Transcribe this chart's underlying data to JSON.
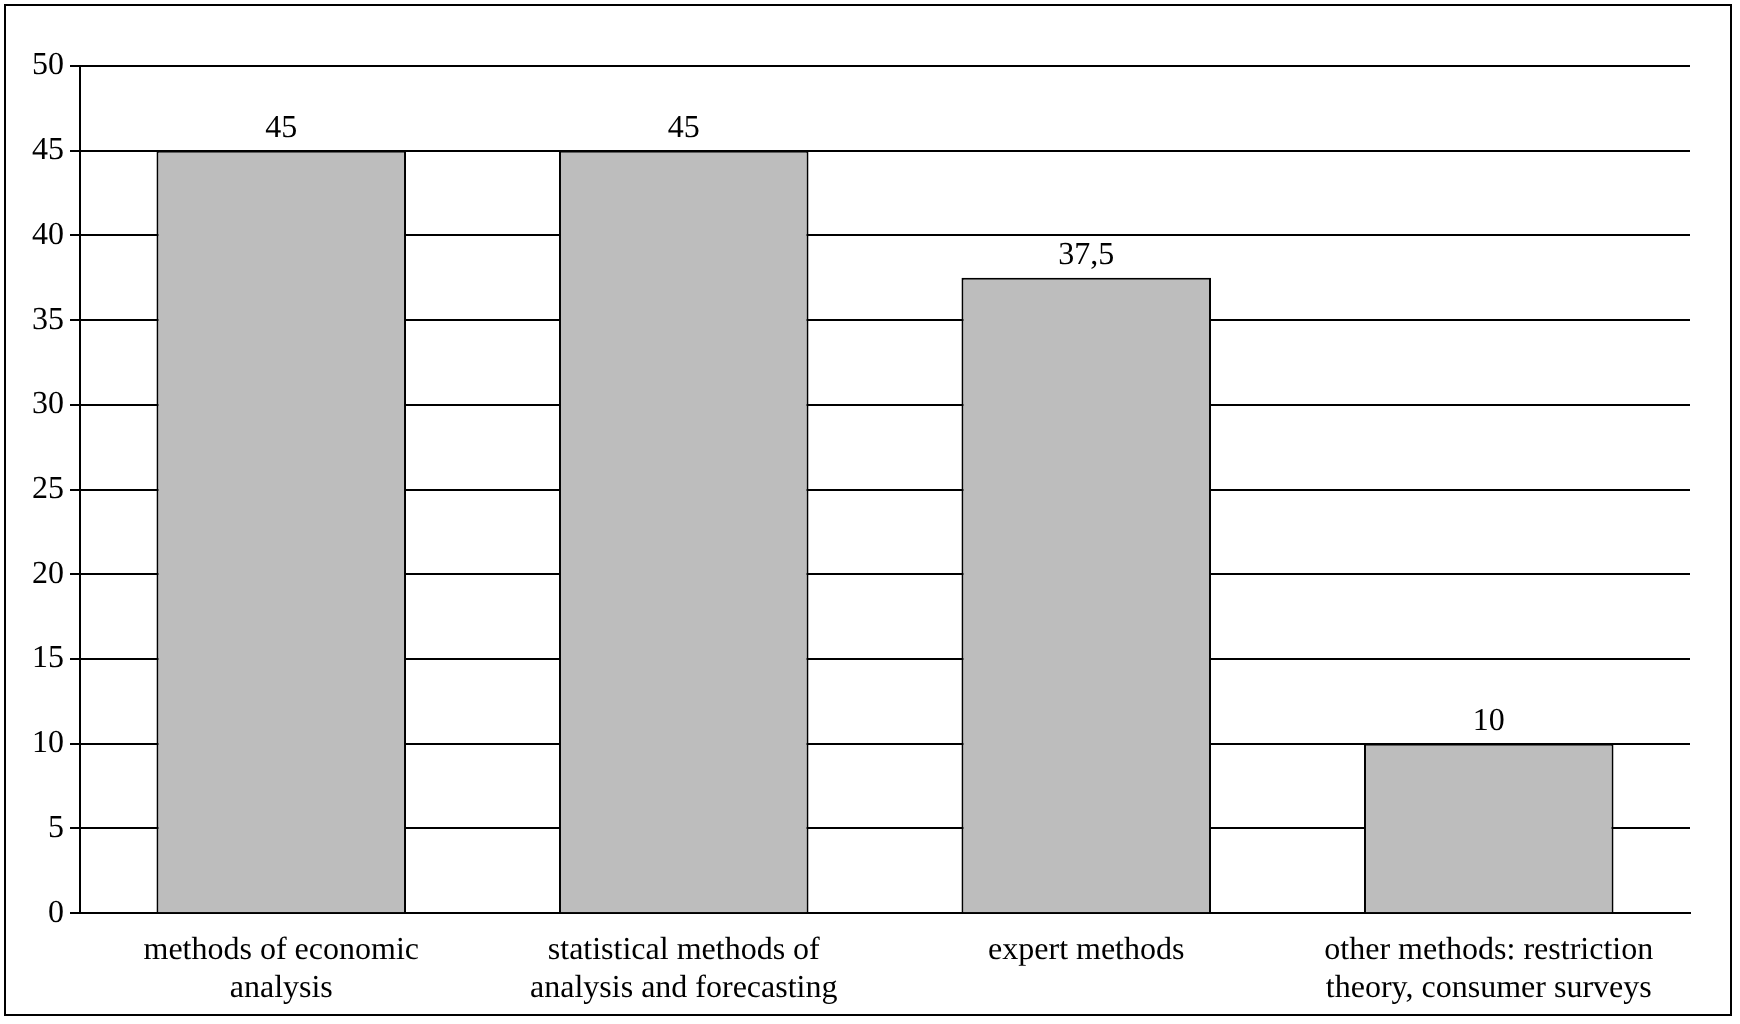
{
  "chart_data": {
    "type": "bar",
    "categories": [
      "methods of economic analysis",
      "statistical methods of analysis and forecasting",
      "expert methods",
      "other methods: restriction theory, consumer surveys"
    ],
    "values": [
      45,
      45,
      37.5,
      10
    ],
    "value_labels": [
      "45",
      "45",
      "37,5",
      "10"
    ],
    "color": "#bdbdbd",
    "ylim": [
      0,
      50
    ],
    "yticks": [
      0,
      5,
      10,
      15,
      20,
      25,
      30,
      35,
      40,
      45,
      50
    ],
    "grid": "y",
    "legend": false
  }
}
